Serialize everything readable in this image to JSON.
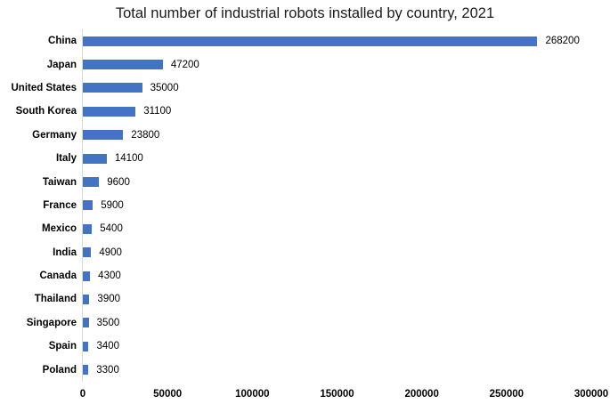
{
  "title": "Total number of industrial robots installed by country, 2021",
  "chart_data": {
    "type": "bar",
    "orientation": "horizontal",
    "title": "Total number of industrial robots installed by country, 2021",
    "categories": [
      "China",
      "Japan",
      "United States",
      "South Korea",
      "Germany",
      "Italy",
      "Taiwan",
      "France",
      "Mexico",
      "India",
      "Canada",
      "Thailand",
      "Singapore",
      "Spain",
      "Poland"
    ],
    "values": [
      268200,
      47200,
      35000,
      31100,
      23800,
      14100,
      9600,
      5900,
      5400,
      4900,
      4300,
      3900,
      3500,
      3400,
      3300
    ],
    "data_labels": [
      "268200",
      "47200",
      "35000",
      "31100",
      "23800",
      "14100",
      "9600",
      "5900",
      "5400",
      "4900",
      "4300",
      "3900",
      "3500",
      "3400",
      "3300"
    ],
    "xlabel": "",
    "ylabel": "",
    "xlim": [
      0,
      300000
    ],
    "x_tick_values": [
      0,
      50000,
      100000,
      150000,
      200000,
      250000,
      300000
    ],
    "x_tick_labels": [
      "0",
      "50000",
      "100000",
      "150000",
      "200000",
      "250000",
      "300000"
    ],
    "grid": false,
    "legend_position": "none",
    "bar_color": "#4472C4",
    "axis_line_color": "#D9D9D9",
    "text_color": "#000000"
  }
}
